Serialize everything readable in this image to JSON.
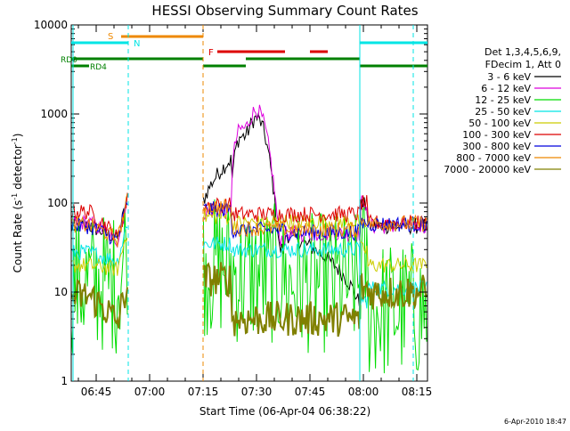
{
  "chart_data": {
    "type": "line",
    "title": "HESSI Observing Summary Count Rates",
    "xlabel": "Start Time (06-Apr-04 06:38:22)",
    "ylabel_main": "Count Rate (s",
    "ylabel_sup1": "-1",
    "ylabel_mid": " detector",
    "ylabel_sup2": "-1",
    "ylabel_end": ")",
    "y_scale": "log",
    "ylim": [
      1,
      10000
    ],
    "xlim_minutes_after_0638": [
      0,
      100
    ],
    "x_ticks": [
      {
        "min": 7,
        "label": "06:45"
      },
      {
        "min": 22,
        "label": "07:00"
      },
      {
        "min": 37,
        "label": "07:15"
      },
      {
        "min": 52,
        "label": "07:30"
      },
      {
        "min": 67,
        "label": "07:45"
      },
      {
        "min": 82,
        "label": "08:00"
      },
      {
        "min": 97,
        "label": "08:15"
      }
    ],
    "y_ticks": [
      {
        "val": 1,
        "label": "1"
      },
      {
        "val": 10,
        "label": "10"
      },
      {
        "val": 100,
        "label": "100"
      },
      {
        "val": 1000,
        "label": "1000"
      },
      {
        "val": 10000,
        "label": "10000"
      }
    ],
    "legend_header": [
      "Det 1,3,4,5,6,9,",
      "FDecim 1, Att 0"
    ],
    "series": [
      {
        "name": "3 - 6 keV",
        "color": "#000000"
      },
      {
        "name": "6 - 12 keV",
        "color": "#dd00dd"
      },
      {
        "name": "12 - 25 keV",
        "color": "#00dd00"
      },
      {
        "name": "25 - 50 keV",
        "color": "#00e5e5"
      },
      {
        "name": "50 - 100 keV",
        "color": "#cccc00"
      },
      {
        "name": "100 - 300 keV",
        "color": "#dd0000"
      },
      {
        "name": "300 - 800 keV",
        "color": "#0000dd"
      },
      {
        "name": "800 - 7000 keV",
        "color": "#ee8800"
      },
      {
        "name": "7000 - 20000 keV",
        "color": "#808000"
      }
    ],
    "flag_labels": {
      "saa": "S",
      "night": "N",
      "flare": "F",
      "rd0": "RD0",
      "rd4": "RD4"
    },
    "footer_date": "6-Apr-2010 18:47",
    "grid": false,
    "legend_placement": "right"
  }
}
